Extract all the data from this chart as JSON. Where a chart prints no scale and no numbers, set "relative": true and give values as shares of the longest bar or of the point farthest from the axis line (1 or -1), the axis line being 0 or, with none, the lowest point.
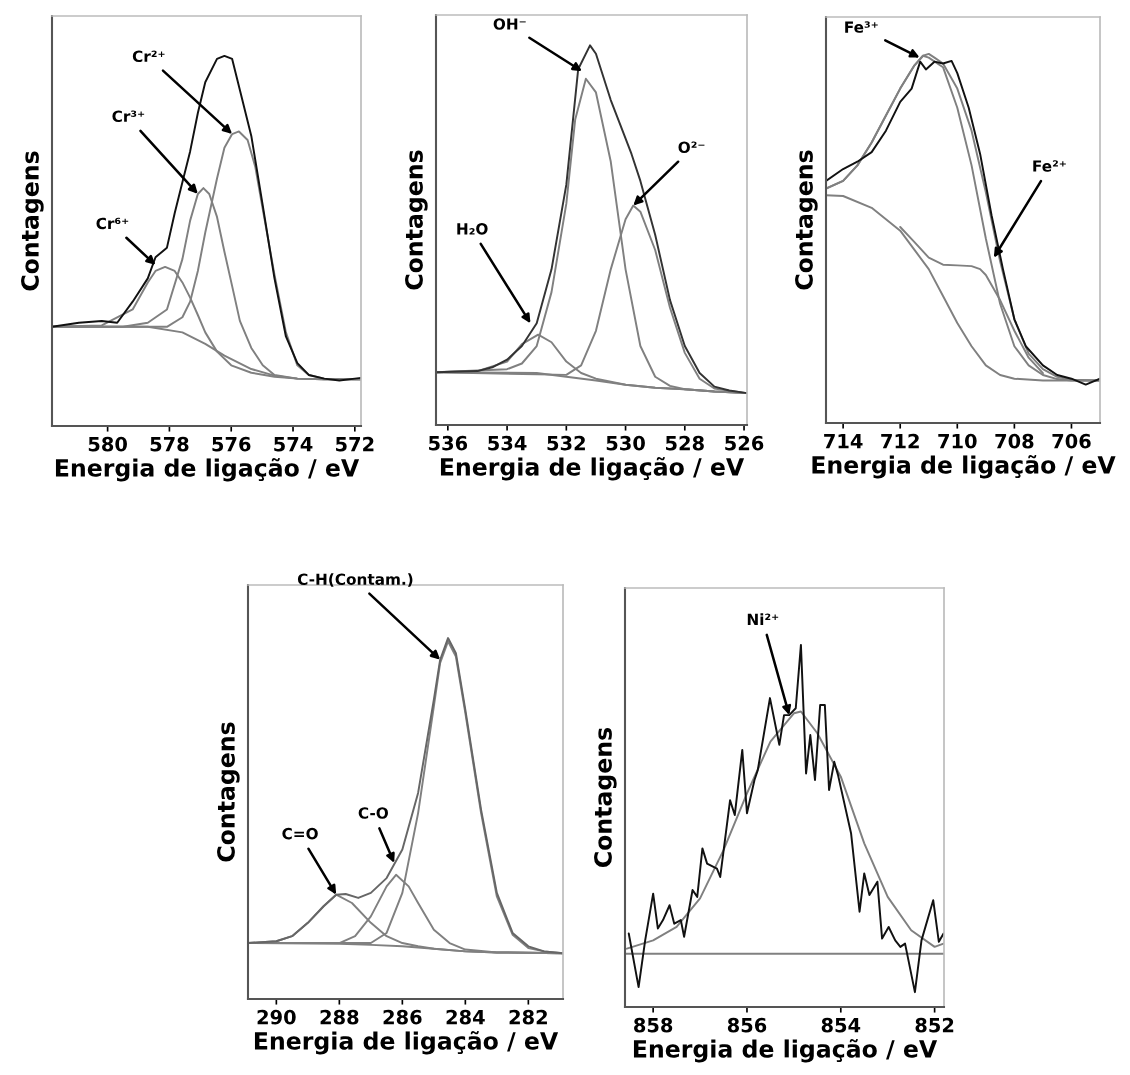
{
  "chart_data": [
    {
      "type": "line",
      "xlabel": "Energia de ligação / eV",
      "ylabel": "Contagens",
      "relative": true,
      "tick_labels": "x",
      "xlim": [
        581.8,
        571.8
      ],
      "xticks": [
        580,
        578,
        576,
        574,
        572
      ],
      "series": [
        {
          "color": "#808080",
          "x": [
            581.8,
            578.7,
            577.58,
            576.84,
            576.22,
            575.35,
            574.6,
            573.86,
            572.99,
            571.8
          ],
          "values": [
            0.268,
            0.268,
            0.253,
            0.222,
            0.19,
            0.154,
            0.136,
            0.128,
            0.126,
            0.126
          ]
        },
        {
          "color": "#808080",
          "x": [
            581.8,
            580.19,
            579.19,
            578.7,
            578.45,
            578.14,
            577.83,
            577.58,
            577.33,
            577.08,
            576.84,
            576.46,
            576.0,
            575.35,
            574.6,
            573.86,
            572.99,
            571.8
          ],
          "values": [
            0.268,
            0.272,
            0.315,
            0.388,
            0.419,
            0.43,
            0.419,
            0.388,
            0.347,
            0.3,
            0.253,
            0.201,
            0.164,
            0.144,
            0.133,
            0.128,
            0.126,
            0.126
          ]
        },
        {
          "color": "#808080",
          "x": [
            581.8,
            580.19,
            579.5,
            578.7,
            578.08,
            577.58,
            577.33,
            577.08,
            576.9,
            576.71,
            576.46,
            576.22,
            575.97,
            575.72,
            575.35,
            574.98,
            574.6,
            573.86,
            572.99,
            571.8
          ],
          "values": [
            0.268,
            0.268,
            0.268,
            0.279,
            0.315,
            0.451,
            0.555,
            0.627,
            0.643,
            0.627,
            0.565,
            0.471,
            0.378,
            0.284,
            0.211,
            0.164,
            0.138,
            0.128,
            0.126,
            0.126
          ]
        },
        {
          "color": "#808080",
          "x": [
            581.8,
            579.19,
            578.08,
            577.58,
            577.33,
            577.08,
            576.84,
            576.46,
            576.22,
            575.97,
            575.75,
            575.47,
            575.22,
            574.98,
            574.6,
            574.23,
            573.86,
            573.49,
            572.99,
            571.8
          ],
          "values": [
            0.268,
            0.268,
            0.268,
            0.294,
            0.336,
            0.419,
            0.523,
            0.669,
            0.752,
            0.789,
            0.796,
            0.773,
            0.7,
            0.586,
            0.409,
            0.253,
            0.164,
            0.138,
            0.128,
            0.126
          ]
        },
        {
          "color": "#111111",
          "x": [
            581.8,
            580.93,
            580.19,
            579.69,
            579.19,
            578.7,
            578.45,
            578.08,
            577.83,
            577.58,
            577.33,
            577.08,
            576.84,
            576.46,
            576.22,
            575.97,
            575.72,
            575.35,
            574.98,
            574.6,
            574.23,
            573.86,
            573.49,
            572.99,
            572.5,
            572.0,
            571.8
          ],
          "values": [
            0.268,
            0.279,
            0.284,
            0.279,
            0.336,
            0.399,
            0.456,
            0.482,
            0.575,
            0.659,
            0.742,
            0.846,
            0.929,
            0.992,
            1.0,
            0.992,
            0.908,
            0.784,
            0.596,
            0.399,
            0.242,
            0.17,
            0.138,
            0.128,
            0.123,
            0.128,
            0.13
          ]
        }
      ],
      "annotations": [
        {
          "text": "Cr²⁺",
          "x": 575.97,
          "y": 0.789
        },
        {
          "text": "Cr³⁺",
          "x": 577.08,
          "y": 0.627
        },
        {
          "text": "Cr⁶⁺",
          "x": 578.45,
          "y": 0.435
        }
      ]
    },
    {
      "type": "line",
      "xlabel": "Energia de ligação / eV",
      "ylabel": "Contagens",
      "relative": true,
      "tick_labels": "x",
      "xlim": [
        536.4,
        525.9
      ],
      "xticks": [
        536,
        534,
        532,
        530,
        528,
        526
      ],
      "series": [
        {
          "color": "#808080",
          "x": [
            536.4,
            533,
            532,
            531,
            530,
            529,
            528,
            527,
            525.9
          ],
          "values": [
            0.139,
            0.137,
            0.127,
            0.117,
            0.106,
            0.098,
            0.094,
            0.088,
            0.084
          ]
        },
        {
          "color": "#808080",
          "x": [
            536.4,
            534,
            533.5,
            533,
            532.5,
            532,
            531.7,
            531.34,
            531,
            530.5,
            530,
            529.5,
            529,
            528.5,
            528,
            527,
            525.9
          ],
          "values": [
            0.139,
            0.147,
            0.162,
            0.208,
            0.35,
            0.583,
            0.805,
            0.912,
            0.876,
            0.694,
            0.41,
            0.208,
            0.127,
            0.103,
            0.094,
            0.088,
            0.084
          ]
        },
        {
          "color": "#808080",
          "x": [
            536.4,
            532,
            531.5,
            531,
            530.5,
            530,
            529.74,
            529.5,
            529,
            528.5,
            528,
            527.5,
            527,
            526.5,
            525.9
          ],
          "values": [
            0.139,
            0.132,
            0.157,
            0.248,
            0.41,
            0.542,
            0.578,
            0.562,
            0.461,
            0.309,
            0.19,
            0.122,
            0.096,
            0.09,
            0.084
          ]
        },
        {
          "color": "#808080",
          "x": [
            536.4,
            535,
            534,
            533.5,
            532.95,
            532.5,
            532,
            531.5,
            531,
            530,
            529,
            528,
            527,
            525.9
          ],
          "values": [
            0.139,
            0.142,
            0.167,
            0.213,
            0.238,
            0.218,
            0.167,
            0.137,
            0.122,
            0.106,
            0.098,
            0.094,
            0.088,
            0.084
          ]
        },
        {
          "color": "#333333",
          "x": [
            536.4,
            535,
            534.5,
            534,
            533.5,
            533,
            532.5,
            532,
            531.6,
            531.2,
            531,
            530.5,
            530.2,
            529.8,
            529.5,
            529,
            528.5,
            528,
            527.5,
            527,
            526.5,
            525.9
          ],
          "values": [
            0.139,
            0.142,
            0.152,
            0.172,
            0.208,
            0.268,
            0.41,
            0.633,
            0.937,
            1.0,
            0.978,
            0.856,
            0.795,
            0.714,
            0.643,
            0.501,
            0.329,
            0.208,
            0.137,
            0.101,
            0.091,
            0.084
          ]
        }
      ],
      "annotations": [
        {
          "text": "OH⁻",
          "x": 531.47,
          "y": 0.932
        },
        {
          "text": "O²⁻",
          "x": 529.74,
          "y": 0.578
        },
        {
          "text": "H₂O",
          "x": 533.21,
          "y": 0.268
        }
      ]
    },
    {
      "type": "line",
      "xlabel": "Energia de ligação / eV",
      "ylabel": "Contagens",
      "relative": true,
      "tick_labels": "x",
      "xlim": [
        714.6,
        705.0
      ],
      "xticks": [
        714,
        712,
        710,
        708,
        706
      ],
      "series": [
        {
          "color": "#808080",
          "x": [
            714.6,
            714,
            713,
            712,
            711.5,
            711,
            710.5,
            710,
            709.5,
            709,
            708.5,
            708,
            707,
            705.0
          ],
          "values": [
            0.617,
            0.615,
            0.583,
            0.521,
            0.469,
            0.417,
            0.344,
            0.271,
            0.208,
            0.156,
            0.13,
            0.12,
            0.115,
            0.115
          ]
        },
        {
          "color": "#808080",
          "x": [
            712,
            711.5,
            711,
            710.5,
            710,
            709.5,
            709.2,
            709,
            708.5,
            708,
            707.5,
            707
          ],
          "values": [
            0.531,
            0.49,
            0.448,
            0.429,
            0.427,
            0.425,
            0.417,
            0.401,
            0.333,
            0.25,
            0.177,
            0.135
          ]
        },
        {
          "color": "#808080",
          "x": [
            714.6,
            714,
            713.5,
            713,
            712.5,
            712,
            711.5,
            711.2,
            711,
            710.5,
            710,
            709.5,
            709,
            708.5,
            708,
            707.5,
            707,
            706.5,
            706,
            705.0
          ],
          "values": [
            0.635,
            0.656,
            0.698,
            0.76,
            0.833,
            0.906,
            0.969,
            0.995,
            0.99,
            0.964,
            0.854,
            0.698,
            0.5,
            0.323,
            0.208,
            0.156,
            0.13,
            0.119,
            0.115,
            0.115
          ]
        },
        {
          "color": "#808080",
          "x": [
            714.6,
            714,
            713.5,
            713,
            712.5,
            712,
            711.5,
            711.2,
            711,
            710.8,
            710.5,
            710,
            709.5,
            709,
            708.5,
            708,
            707.5,
            707,
            706.5,
            706,
            705.0
          ],
          "values": [
            0.635,
            0.656,
            0.698,
            0.76,
            0.833,
            0.906,
            0.969,
            0.995,
            1.0,
            0.99,
            0.974,
            0.906,
            0.792,
            0.625,
            0.438,
            0.281,
            0.188,
            0.146,
            0.125,
            0.117,
            0.115
          ]
        },
        {
          "color": "#111111",
          "x": [
            714.6,
            714,
            713.5,
            713,
            712.5,
            712,
            711.6,
            711.3,
            711.1,
            710.8,
            710.5,
            710.2,
            710,
            709.6,
            709.2,
            708.8,
            708.4,
            708,
            707.6,
            707,
            706.5,
            706,
            705.5,
            705.0
          ],
          "values": [
            0.656,
            0.688,
            0.708,
            0.734,
            0.792,
            0.87,
            0.906,
            0.979,
            0.958,
            0.979,
            0.974,
            0.981,
            0.948,
            0.854,
            0.729,
            0.563,
            0.417,
            0.281,
            0.208,
            0.156,
            0.13,
            0.12,
            0.104,
            0.12
          ]
        }
      ],
      "annotations": [
        {
          "text": "Fe³⁺",
          "x": 711.32,
          "y": 0.99
        },
        {
          "text": "Fe²⁺",
          "x": 708.72,
          "y": 0.448
        }
      ]
    },
    {
      "type": "line",
      "xlabel": "Energia de ligação / eV",
      "ylabel": "Contagens",
      "relative": true,
      "tick_labels": "x",
      "xlim": [
        290.9,
        280.9
      ],
      "xticks": [
        290,
        288,
        286,
        284,
        282
      ],
      "series": [
        {
          "color": "#808080",
          "x": [
            290.9,
            288,
            287,
            286,
            285,
            284,
            283,
            280.9
          ],
          "values": [
            0.155,
            0.153,
            0.15,
            0.146,
            0.139,
            0.132,
            0.129,
            0.127
          ]
        },
        {
          "color": "#808080",
          "x": [
            290.9,
            290,
            289.5,
            289,
            288.5,
            288.1,
            287.6,
            287,
            286.5,
            286,
            285.5,
            285,
            284,
            283,
            280.9
          ],
          "values": [
            0.155,
            0.16,
            0.174,
            0.211,
            0.257,
            0.289,
            0.266,
            0.211,
            0.174,
            0.155,
            0.146,
            0.139,
            0.132,
            0.129,
            0.127
          ]
        },
        {
          "color": "#808080",
          "x": [
            290.9,
            288,
            287.5,
            287,
            286.5,
            286.2,
            285.8,
            285.5,
            285,
            284.5,
            284,
            283,
            280.9
          ],
          "values": [
            0.155,
            0.155,
            0.174,
            0.229,
            0.312,
            0.344,
            0.312,
            0.266,
            0.192,
            0.155,
            0.137,
            0.129,
            0.127
          ]
        },
        {
          "color": "#808080",
          "x": [
            290.9,
            287,
            286.5,
            286,
            285.5,
            285,
            284.8,
            284.55,
            284.3,
            284,
            283.5,
            283,
            282.5,
            282,
            281.5,
            280.9
          ],
          "values": [
            0.155,
            0.155,
            0.183,
            0.294,
            0.515,
            0.811,
            0.931,
            0.991,
            0.949,
            0.792,
            0.515,
            0.284,
            0.178,
            0.141,
            0.132,
            0.127
          ]
        },
        {
          "color": "#666666",
          "x": [
            290.9,
            290,
            289.5,
            289,
            288.5,
            288.1,
            287.8,
            287.4,
            287,
            286.5,
            286,
            285.5,
            285,
            284.8,
            284.55,
            284.3,
            284,
            283.5,
            283,
            282.5,
            282,
            281.5,
            280.9
          ],
          "values": [
            0.155,
            0.16,
            0.174,
            0.211,
            0.257,
            0.289,
            0.291,
            0.28,
            0.294,
            0.335,
            0.414,
            0.571,
            0.829,
            0.94,
            1.0,
            0.958,
            0.801,
            0.524,
            0.294,
            0.183,
            0.146,
            0.132,
            0.127
          ]
        }
      ],
      "annotations": [
        {
          "text": "C-H(Contam.)",
          "x": 284.8,
          "y": 0.94
        },
        {
          "text": "C=O",
          "x": 288.1,
          "y": 0.289
        },
        {
          "text": "C-O",
          "x": 286.26,
          "y": 0.377
        }
      ]
    },
    {
      "type": "line",
      "xlabel": "Energia de ligação / eV",
      "ylabel": "Contagens",
      "relative": true,
      "tick_labels": "x",
      "xlim": [
        858.6,
        851.8
      ],
      "xticks": [
        858,
        856,
        854,
        852
      ],
      "series": [
        {
          "color": "#808080",
          "x": [
            858.6,
            851.8
          ],
          "values": [
            0.147,
            0.147
          ]
        },
        {
          "color": "#808080",
          "x": [
            858.56,
            858,
            857.5,
            857,
            856.5,
            856,
            855.5,
            855,
            854.85,
            854.5,
            854,
            853.5,
            853,
            852.5,
            852,
            851.81
          ],
          "values": [
            0.161,
            0.184,
            0.221,
            0.3,
            0.433,
            0.59,
            0.733,
            0.811,
            0.816,
            0.756,
            0.636,
            0.452,
            0.304,
            0.212,
            0.166,
            0.175
          ]
        },
        {
          "color": "#111111",
          "x": [
            858.52,
            858.31,
            858.17,
            858.0,
            857.9,
            857.79,
            857.65,
            857.55,
            857.41,
            857.34,
            857.16,
            857.06,
            856.95,
            856.85,
            856.64,
            856.57,
            856.36,
            856.26,
            856.1,
            856.0,
            855.84,
            855.77,
            855.51,
            855.31,
            855.21,
            855.1,
            854.96,
            854.85,
            854.74,
            854.65,
            854.55,
            854.44,
            854.34,
            854.25,
            854.14,
            854.06,
            853.78,
            853.6,
            853.5,
            853.39,
            853.22,
            853.12,
            852.98,
            852.84,
            852.73,
            852.63,
            852.42,
            852.28,
            852.03,
            851.91,
            851.81
          ],
          "values": [
            0.203,
            0.055,
            0.184,
            0.313,
            0.217,
            0.24,
            0.281,
            0.23,
            0.24,
            0.194,
            0.323,
            0.304,
            0.438,
            0.396,
            0.382,
            0.359,
            0.571,
            0.53,
            0.71,
            0.535,
            0.627,
            0.654,
            0.853,
            0.724,
            0.806,
            0.806,
            0.825,
            1.0,
            0.645,
            0.751,
            0.627,
            0.834,
            0.834,
            0.599,
            0.677,
            0.641,
            0.479,
            0.263,
            0.369,
            0.309,
            0.346,
            0.189,
            0.221,
            0.184,
            0.166,
            0.175,
            0.041,
            0.184,
            0.295,
            0.18,
            0.203
          ]
        }
      ],
      "annotations": [
        {
          "text": "Ni²⁺",
          "x": 855.1,
          "y": 0.806
        }
      ]
    }
  ]
}
